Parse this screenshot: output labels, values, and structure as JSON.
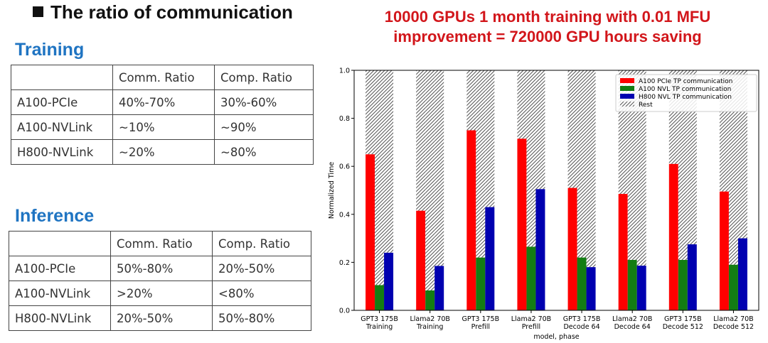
{
  "slide": {
    "title": "The ratio of communication",
    "highlight_line1": "10000 GPUs 1 month training with 0.01 MFU",
    "highlight_line2": "improvement = 720000 GPU hours saving"
  },
  "training": {
    "title": "Training",
    "header": [
      "",
      "Comm. Ratio",
      "Comp. Ratio"
    ],
    "rows": [
      [
        "A100-PCIe",
        "40%-70%",
        "30%-60%"
      ],
      [
        "A100-NVLink",
        "~10%",
        "~90%"
      ],
      [
        "H800-NVLink",
        "~20%",
        "~80%"
      ]
    ]
  },
  "inference": {
    "title": "Inference",
    "header": [
      "",
      "Comm. Ratio",
      "Comp. Ratio"
    ],
    "rows": [
      [
        "A100-PCIe",
        "50%-80%",
        "20%-50%"
      ],
      [
        "A100-NVLink",
        ">20%",
        "<80%"
      ],
      [
        "H800-NVLink",
        "20%-50%",
        "50%-80%"
      ]
    ]
  },
  "chart_data": {
    "type": "bar",
    "xlabel": "model, phase",
    "ylabel": "Normalized Time",
    "ylim": [
      0,
      1.0
    ],
    "yticks": [
      "0.0",
      "0.2",
      "0.4",
      "0.6",
      "0.8",
      "1.0"
    ],
    "categories": [
      [
        "GPT3 175B",
        "Training"
      ],
      [
        "Llama2 70B",
        "Training"
      ],
      [
        "GPT3 175B",
        "Prefill"
      ],
      [
        "Llama2 70B",
        "Prefill"
      ],
      [
        "GPT3 175B",
        "Decode 64"
      ],
      [
        "Llama2 70B",
        "Decode 64"
      ],
      [
        "GPT3 175B",
        "Decode 512"
      ],
      [
        "Llama2 70B",
        "Decode 512"
      ]
    ],
    "series": [
      {
        "name": "A100 PCIe TP communication",
        "color": "#ff0000",
        "values": [
          0.65,
          0.415,
          0.75,
          0.715,
          0.51,
          0.485,
          0.61,
          0.495
        ]
      },
      {
        "name": "A100 NVL TP communication",
        "color": "#137d13",
        "values": [
          0.105,
          0.083,
          0.22,
          0.265,
          0.22,
          0.21,
          0.21,
          0.19
        ]
      },
      {
        "name": "H800 NVL TP communication",
        "color": "#0000b0",
        "values": [
          0.24,
          0.185,
          0.43,
          0.505,
          0.18,
          0.186,
          0.275,
          0.3
        ]
      }
    ],
    "rest": {
      "name": "Rest",
      "hatch": "////",
      "total": 1.0
    },
    "legend_position": "top-right",
    "grid": false
  }
}
